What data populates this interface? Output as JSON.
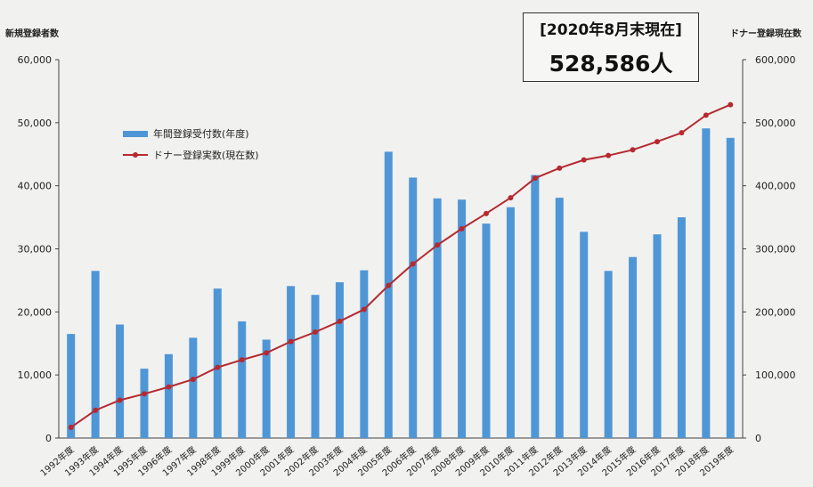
{
  "axis_labels": {
    "left": "新規登録者数",
    "right": "ドナー登録現在数"
  },
  "status_box": {
    "date": "[2020年8月末現在]",
    "count": "528,586人"
  },
  "legend": {
    "bar": "年間登録受付数(年度)",
    "line": "ドナー登録実数(現在数)"
  },
  "colors": {
    "bar": "#4f96d6",
    "line": "#b5292f"
  },
  "chart_data": {
    "type": "bar",
    "categories": [
      "1992年度",
      "1993年度",
      "1994年度",
      "1995年度",
      "1996年度",
      "1997年度",
      "1998年度",
      "1999年度",
      "2000年度",
      "2001年度",
      "2002年度",
      "2003年度",
      "2004年度",
      "2005年度",
      "2006年度",
      "2007年度",
      "2008年度",
      "2009年度",
      "2010年度",
      "2011年度",
      "2012年度",
      "2013年度",
      "2014年度",
      "2015年度",
      "2016年度",
      "2017年度",
      "2018年度",
      "2019年度"
    ],
    "series": [
      {
        "name": "年間登録受付数(年度)",
        "type": "bar",
        "axis": "left",
        "values": [
          16500,
          26500,
          18000,
          11000,
          13300,
          15900,
          23700,
          18500,
          15600,
          24100,
          22700,
          24700,
          26600,
          45400,
          41300,
          38000,
          37800,
          34000,
          36600,
          41700,
          38100,
          32700,
          26500,
          28700,
          32300,
          35000,
          49100,
          47600
        ]
      },
      {
        "name": "ドナー登録実数(現在数)",
        "type": "line",
        "axis": "right",
        "values": [
          17000,
          44000,
          60000,
          70000,
          81000,
          93000,
          112000,
          124000,
          135000,
          153000,
          168000,
          185000,
          204000,
          242000,
          276000,
          306000,
          332000,
          356000,
          381000,
          412000,
          428000,
          441000,
          448000,
          457000,
          470000,
          484000,
          512000,
          528586
        ]
      }
    ],
    "y_left": {
      "ylim": [
        0,
        60000
      ],
      "ticks": [
        "0",
        "10,000",
        "20,000",
        "30,000",
        "40,000",
        "50,000",
        "60,000"
      ]
    },
    "y_right": {
      "ylim": [
        0,
        600000
      ],
      "ticks": [
        "0",
        "100,000",
        "200,000",
        "300,000",
        "400,000",
        "500,000",
        "600,000"
      ]
    }
  }
}
